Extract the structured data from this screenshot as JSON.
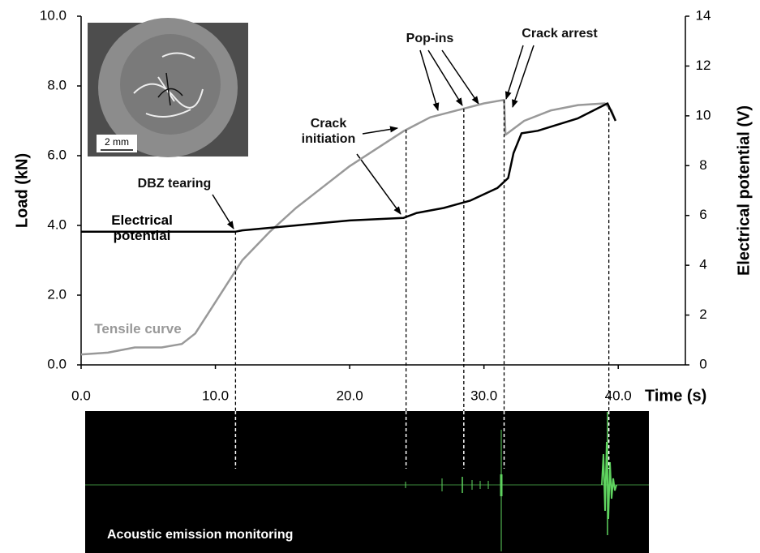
{
  "chart_data": {
    "type": "line",
    "x_label": "Time (s)",
    "y_label": "Load (kN)",
    "y2_label": "Electrical potential (V)",
    "xlim": [
      0,
      45
    ],
    "xticks": [
      {
        "value": 0,
        "label": "0.0"
      },
      {
        "value": 10,
        "label": "10.0"
      },
      {
        "value": 20,
        "label": "20.0"
      },
      {
        "value": 30,
        "label": "30.0"
      },
      {
        "value": 40,
        "label": "40.0"
      }
    ],
    "ylim": [
      0,
      10
    ],
    "yticks": [
      {
        "value": 0,
        "label": "0.0"
      },
      {
        "value": 2,
        "label": "2.0"
      },
      {
        "value": 4,
        "label": "4.0"
      },
      {
        "value": 6,
        "label": "6.0"
      },
      {
        "value": 8,
        "label": "8.0"
      },
      {
        "value": 10,
        "label": "10.0"
      }
    ],
    "y2lim": [
      0,
      14
    ],
    "y2ticks": [
      0,
      2,
      4,
      6,
      8,
      10,
      12,
      14
    ],
    "series": [
      {
        "name": "Tensile curve",
        "color": "#999999",
        "x": [
          0,
          2,
          4,
          6,
          7.5,
          8.5,
          10,
          11,
          12,
          14,
          16,
          18,
          20,
          22,
          24,
          26,
          28,
          30,
          31.5,
          31.6,
          33,
          35,
          37,
          39,
          39.5,
          39.8
        ],
        "values": [
          0.3,
          0.35,
          0.5,
          0.5,
          0.6,
          0.9,
          1.8,
          2.4,
          3.0,
          3.8,
          4.5,
          5.1,
          5.7,
          6.2,
          6.7,
          7.1,
          7.3,
          7.5,
          7.6,
          6.6,
          7.0,
          7.3,
          7.45,
          7.5,
          7.3,
          7.0
        ]
      },
      {
        "name": "Electrical potential",
        "color": "#000000",
        "axis": "y2",
        "x": [
          0,
          11.5,
          12,
          16,
          20,
          24,
          25,
          27,
          29,
          31,
          31.8,
          32.2,
          32.8,
          34,
          37,
          39.2,
          39.8
        ],
        "values": [
          5.35,
          5.35,
          5.4,
          5.6,
          5.8,
          5.9,
          6.1,
          6.3,
          6.6,
          7.1,
          7.5,
          8.5,
          9.3,
          9.4,
          9.9,
          10.5,
          9.8
        ]
      }
    ],
    "event_times": [
      11.5,
      24.2,
      28.5,
      31.5,
      39.3
    ],
    "annotations": [
      "DBZ tearing",
      "Crack initiation",
      "Pop-ins",
      "Crack arrest"
    ]
  },
  "inset_scale": "2 mm",
  "panel_label": "Acoustic emission monitoring"
}
